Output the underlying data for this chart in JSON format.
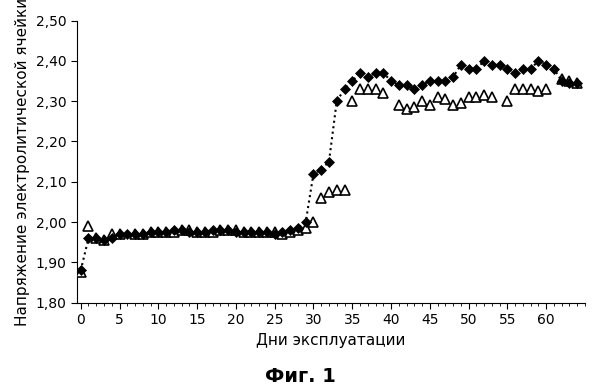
{
  "diamonds_x": [
    0,
    1,
    2,
    3,
    4,
    5,
    6,
    7,
    8,
    9,
    10,
    11,
    12,
    13,
    14,
    15,
    16,
    17,
    18,
    19,
    20,
    21,
    22,
    23,
    24,
    25,
    26,
    27,
    28,
    29,
    30,
    31,
    32,
    33,
    34,
    35,
    36,
    37,
    38,
    39,
    40,
    41,
    42,
    43,
    44,
    45,
    46,
    47,
    48,
    49,
    50,
    51,
    52,
    53,
    54,
    55,
    56,
    57,
    58,
    59,
    60,
    61,
    62,
    63,
    64
  ],
  "diamonds_y": [
    1.88,
    1.96,
    1.96,
    1.955,
    1.96,
    1.97,
    1.97,
    1.97,
    1.97,
    1.975,
    1.975,
    1.975,
    1.98,
    1.98,
    1.975,
    1.975,
    1.975,
    1.98,
    1.98,
    1.98,
    1.975,
    1.975,
    1.975,
    1.975,
    1.975,
    1.97,
    1.975,
    1.98,
    1.985,
    2.0,
    2.12,
    2.13,
    2.15,
    2.3,
    2.33,
    2.35,
    2.37,
    2.36,
    2.37,
    2.37,
    2.35,
    2.34,
    2.34,
    2.33,
    2.34,
    2.35,
    2.35,
    2.35,
    2.36,
    2.39,
    2.38,
    2.38,
    2.4,
    2.39,
    2.39,
    2.38,
    2.37,
    2.38,
    2.38,
    2.4,
    2.39,
    2.38,
    2.35,
    2.345,
    2.345
  ],
  "triangles_x": [
    0,
    1,
    2,
    3,
    4,
    5,
    7,
    8,
    9,
    10,
    11,
    12,
    13,
    14,
    15,
    16,
    17,
    18,
    19,
    20,
    21,
    22,
    23,
    24,
    25,
    26,
    27,
    28,
    29,
    30,
    31,
    32,
    33,
    34,
    35,
    36,
    37,
    38,
    39,
    41,
    42,
    43,
    44,
    45,
    46,
    47,
    48,
    49,
    50,
    51,
    52,
    53,
    55,
    56,
    57,
    58,
    59,
    60,
    62,
    63,
    64
  ],
  "triangles_y": [
    1.875,
    1.99,
    1.96,
    1.955,
    1.97,
    1.97,
    1.97,
    1.97,
    1.975,
    1.975,
    1.975,
    1.975,
    1.98,
    1.98,
    1.975,
    1.975,
    1.975,
    1.98,
    1.98,
    1.98,
    1.975,
    1.975,
    1.975,
    1.975,
    1.975,
    1.97,
    1.975,
    1.98,
    1.985,
    2.0,
    2.06,
    2.075,
    2.08,
    2.08,
    2.3,
    2.33,
    2.33,
    2.33,
    2.32,
    2.29,
    2.28,
    2.285,
    2.3,
    2.29,
    2.31,
    2.305,
    2.29,
    2.295,
    2.31,
    2.31,
    2.315,
    2.31,
    2.3,
    2.33,
    2.33,
    2.33,
    2.325,
    2.33,
    2.355,
    2.35,
    2.345
  ],
  "xlabel": "Дни эксплуатации",
  "ylabel": "Напряжение электролитической ячейки",
  "caption": "Фиг. 1",
  "xlim": [
    -0.5,
    65
  ],
  "ylim": [
    1.8,
    2.5
  ],
  "xticks": [
    0,
    5,
    10,
    15,
    20,
    25,
    30,
    35,
    40,
    45,
    50,
    55,
    60
  ],
  "yticks": [
    1.8,
    1.9,
    2.0,
    2.1,
    2.2,
    2.3,
    2.4,
    2.5
  ],
  "bg_color": "#ffffff",
  "font_size_ticks": 10,
  "font_size_label": 11,
  "font_size_caption": 14
}
